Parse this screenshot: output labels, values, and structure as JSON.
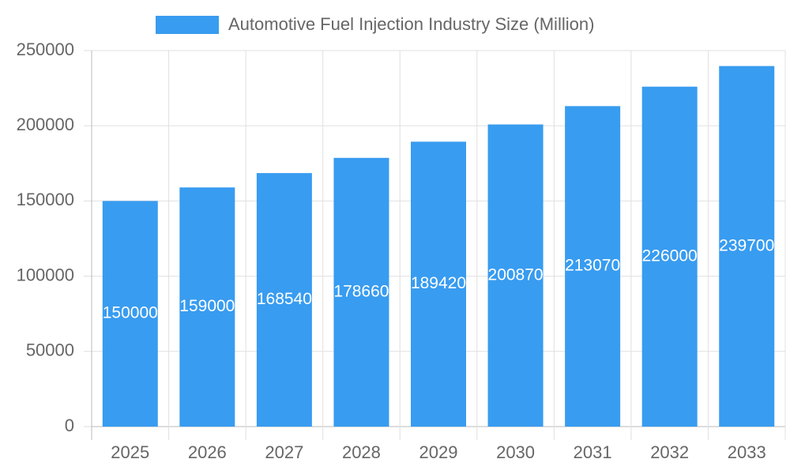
{
  "chart_data": {
    "type": "bar",
    "categories": [
      "2025",
      "2026",
      "2027",
      "2028",
      "2029",
      "2030",
      "2031",
      "2032",
      "2033"
    ],
    "series": [
      {
        "name": "Automotive Fuel Injection Industry Size (Million)",
        "color": "#389cf0",
        "values": [
          150000,
          159000,
          168540,
          178660,
          189420,
          200870,
          213070,
          226000,
          239700
        ]
      }
    ],
    "ylim": [
      0,
      250000
    ],
    "yticks": [
      0,
      50000,
      100000,
      150000,
      200000,
      250000
    ],
    "grid": true,
    "legend": "top",
    "data_labels": true
  }
}
